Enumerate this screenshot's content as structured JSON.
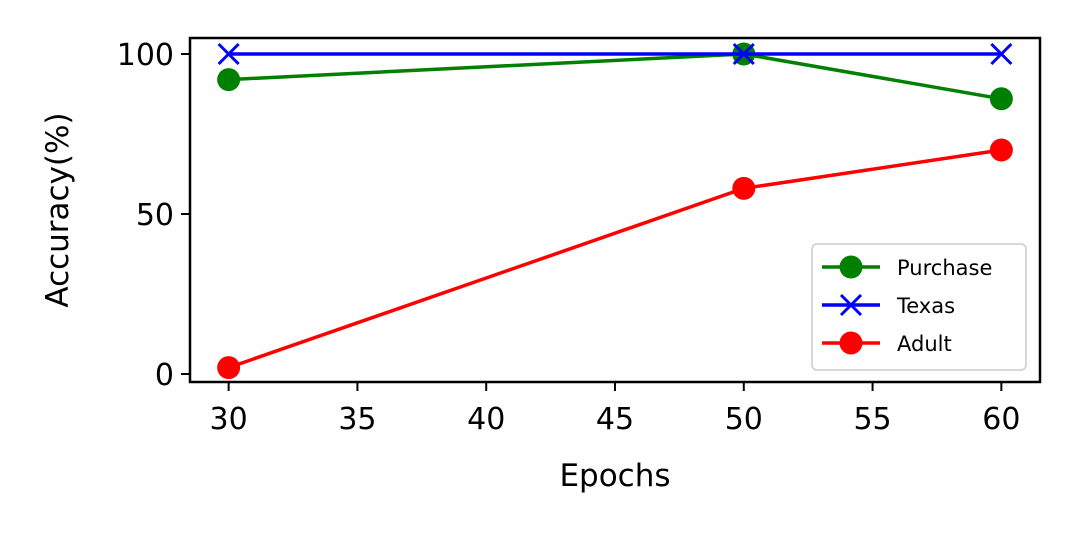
{
  "chart_data": {
    "type": "line",
    "title": "",
    "xlabel": "Epochs",
    "ylabel": "Accuracy(%)",
    "x": [
      30,
      50,
      60
    ],
    "xlim": [
      28.5,
      61.5
    ],
    "ylim": [
      -2.5,
      105
    ],
    "xticks": [
      "30",
      "35",
      "40",
      "45",
      "50",
      "55",
      "60"
    ],
    "yticks": [
      "0",
      "50",
      "100"
    ],
    "grid": false,
    "legend_position": "lower-right",
    "series": [
      {
        "name": "Purchase",
        "values": [
          92,
          100,
          86
        ],
        "color": "#008000",
        "marker": "circle"
      },
      {
        "name": "Texas",
        "values": [
          100,
          100,
          100
        ],
        "color": "#0000ff",
        "marker": "x"
      },
      {
        "name": "Adult",
        "values": [
          2,
          58,
          70
        ],
        "color": "#ff0000",
        "marker": "circle"
      }
    ]
  }
}
